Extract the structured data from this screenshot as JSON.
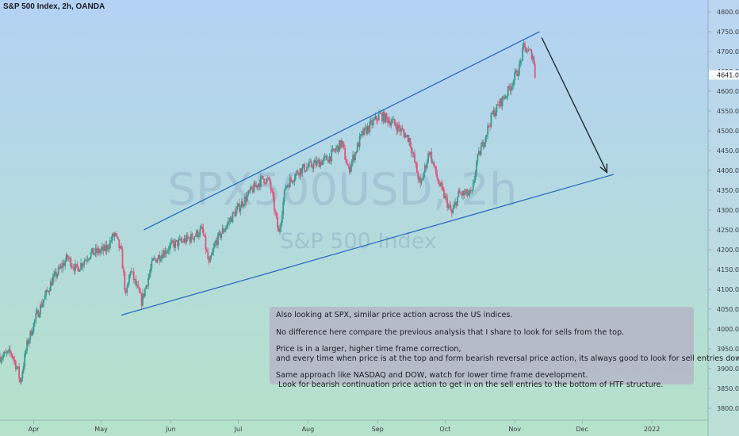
{
  "header": {
    "title": "S&P 500 Index, 2h, OANDA"
  },
  "watermark": {
    "symbol": "SPX500USD, 2h",
    "name": "S&P 500 Index"
  },
  "price_label": "4641.0",
  "note": {
    "lines": [
      "Also looking at SPX, similar price action across the US indices.",
      "",
      "No difference here compare the previous analysis that I share to look for sells from the top.",
      "",
      "Price is in a larger, higher time frame correction,",
      "and every time when price is at the top and form bearish reversal price action, its always good to look for sell entries down.",
      "",
      "Same approach like NASDAQ and DOW, watch for lower time frame development.",
      " Look for bearish continuation price action to get in on the sell entries to the bottom of HTF structure."
    ]
  },
  "colors": {
    "bg_top": "#b4d2f4",
    "bg_bottom": "#b5e2c9",
    "up_candle": "#3a9a8c",
    "down_candle": "#e0557a",
    "channel_line": "#2a6fc0",
    "arrow": "#1f2a33",
    "axis_text": "#3a3f47"
  },
  "chart_data": {
    "type": "candlestick",
    "title": "S&P 500 Index, 2h, OANDA",
    "ylim": [
      3770,
      4830
    ],
    "y_ticks": [
      3800,
      3850,
      3900,
      3950,
      4000,
      4050,
      4100,
      4150,
      4200,
      4250,
      4300,
      4350,
      4400,
      4450,
      4500,
      4550,
      4600,
      4650,
      4700,
      4750,
      4800
    ],
    "y_tick_labels": [
      "3800.0",
      "3850.0",
      "3900.0",
      "3950.0",
      "4000.0",
      "4050.0",
      "4100.0",
      "4150.0",
      "4200.0",
      "4250.0",
      "4300.0",
      "4350.0",
      "4400.0",
      "4450.0",
      "4500.0",
      "4550.0",
      "4600.0",
      "4650.0",
      "4700.0",
      "4750.0",
      "4800.0"
    ],
    "x_range": [
      "2021-03-17",
      "2022-01-26"
    ],
    "x_ticks": [
      {
        "label": "Apr",
        "date": "2021-04-01"
      },
      {
        "label": "May",
        "date": "2021-05-01"
      },
      {
        "label": "Jun",
        "date": "2021-06-01"
      },
      {
        "label": "Jul",
        "date": "2021-07-01"
      },
      {
        "label": "Aug",
        "date": "2021-08-01"
      },
      {
        "label": "Sep",
        "date": "2021-09-01"
      },
      {
        "label": "Oct",
        "date": "2021-10-01"
      },
      {
        "label": "Nov",
        "date": "2021-11-01"
      },
      {
        "label": "Dec",
        "date": "2021-12-01"
      },
      {
        "label": "2022",
        "date": "2022-01-01"
      }
    ],
    "price_path": [
      [
        "2021-03-17",
        3930
      ],
      [
        "2021-03-22",
        3940
      ],
      [
        "2021-03-25",
        3895
      ],
      [
        "2021-03-26",
        3865
      ],
      [
        "2021-03-29",
        3960
      ],
      [
        "2021-04-02",
        4030
      ],
      [
        "2021-04-09",
        4120
      ],
      [
        "2021-04-16",
        4180
      ],
      [
        "2021-04-20",
        4150
      ],
      [
        "2021-04-26",
        4190
      ],
      [
        "2021-05-03",
        4200
      ],
      [
        "2021-05-07",
        4240
      ],
      [
        "2021-05-10",
        4190
      ],
      [
        "2021-05-12",
        4080
      ],
      [
        "2021-05-14",
        4150
      ],
      [
        "2021-05-19",
        4070
      ],
      [
        "2021-05-24",
        4170
      ],
      [
        "2021-06-01",
        4210
      ],
      [
        "2021-06-10",
        4230
      ],
      [
        "2021-06-15",
        4250
      ],
      [
        "2021-06-18",
        4160
      ],
      [
        "2021-06-21",
        4220
      ],
      [
        "2021-06-29",
        4290
      ],
      [
        "2021-07-07",
        4350
      ],
      [
        "2021-07-12",
        4380
      ],
      [
        "2021-07-15",
        4370
      ],
      [
        "2021-07-19",
        4240
      ],
      [
        "2021-07-22",
        4360
      ],
      [
        "2021-07-28",
        4400
      ],
      [
        "2021-08-10",
        4430
      ],
      [
        "2021-08-16",
        4470
      ],
      [
        "2021-08-19",
        4400
      ],
      [
        "2021-08-25",
        4490
      ],
      [
        "2021-09-02",
        4540
      ],
      [
        "2021-09-08",
        4520
      ],
      [
        "2021-09-15",
        4480
      ],
      [
        "2021-09-20",
        4360
      ],
      [
        "2021-09-24",
        4450
      ],
      [
        "2021-09-28",
        4370
      ],
      [
        "2021-10-04",
        4290
      ],
      [
        "2021-10-07",
        4340
      ],
      [
        "2021-10-13",
        4340
      ],
      [
        "2021-10-15",
        4420
      ],
      [
        "2021-10-22",
        4540
      ],
      [
        "2021-10-29",
        4600
      ],
      [
        "2021-11-03",
        4660
      ],
      [
        "2021-11-05",
        4710
      ],
      [
        "2021-11-09",
        4690
      ],
      [
        "2021-11-10",
        4640
      ]
    ],
    "annotations": {
      "channel_upper": [
        [
          "2021-05-20",
          4250
        ],
        [
          "2021-11-12",
          4750
        ]
      ],
      "channel_lower": [
        [
          "2021-05-10",
          4035
        ],
        [
          "2021-12-15",
          4390
        ]
      ],
      "arrow": {
        "from": [
          "2021-11-13",
          4735
        ],
        "to": [
          "2021-12-12",
          4395
        ]
      },
      "current_price": 4641.0
    }
  }
}
